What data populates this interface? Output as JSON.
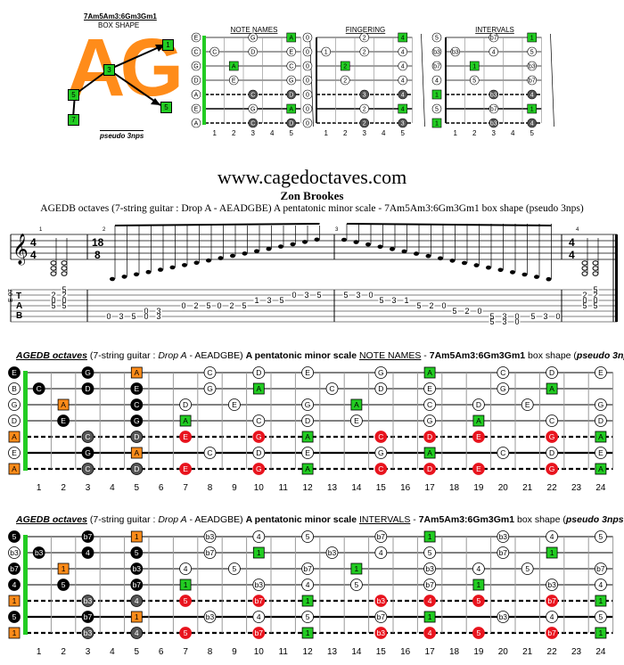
{
  "logo": {
    "shape_name": "7Am5Am3:6Gm3Gm1",
    "shape_label": "BOX SHAPE",
    "letters": "AG",
    "subtitle": "pseudo 3nps",
    "markers": [
      "1",
      "3",
      "5",
      "7",
      "5"
    ]
  },
  "mini_diagrams": [
    {
      "title": "NOTE NAMES"
    },
    {
      "title": "FINGERING"
    },
    {
      "title": "INTERVALS"
    }
  ],
  "mini_fret_numbers": [
    "1",
    "2",
    "3",
    "4",
    "5"
  ],
  "site": "www.cagedoctaves.com",
  "author": "Zon Brookes",
  "subtitle": "AGEDB octaves (7-string guitar : Drop A - AEADGBE) A pentatonic minor scale - 7Am5Am3:6Gm3Gm1 box shape (pseudo 3nps)",
  "notation": {
    "time_sig_a": [
      "4",
      "4"
    ],
    "time_sig_b": [
      "18",
      "8"
    ],
    "measure_numbers": [
      "1",
      "2",
      "3",
      "4"
    ],
    "clef_note": "E-07",
    "tab_label": [
      "T",
      "A",
      "B"
    ]
  },
  "fretboard_notes": {
    "caption_a": "AGEDB octaves",
    "caption_b": " (7-string guitar : ",
    "caption_c": "Drop A",
    "caption_d": " - AEADGBE) ",
    "caption_e": "A pentatonic minor scale ",
    "caption_f": "NOTE NAMES",
    "caption_g": " - ",
    "caption_h": "7Am5Am3:6Gm3Gm1",
    "caption_i": " box shape  (",
    "caption_j": "pseudo 3nps",
    "caption_k": ")",
    "open_strings": [
      "E",
      "B",
      "G",
      "D",
      "A",
      "E",
      "A"
    ]
  },
  "fretboard_intervals": {
    "caption_a": "AGEDB octaves",
    "caption_b": " (7-string guitar : ",
    "caption_c": "Drop A",
    "caption_d": " - AEADGBE) ",
    "caption_e": "A pentatonic minor scale ",
    "caption_f": "INTERVALS",
    "caption_g": " - ",
    "caption_h": "7Am5Am3:6Gm3Gm1",
    "caption_i": " box shape (",
    "caption_j": "pseudo 3nps",
    "caption_k": ")",
    "open_strings": [
      "5",
      "b3",
      "b7",
      "4",
      "1",
      "5",
      "1"
    ]
  },
  "fret_numbers": [
    "1",
    "2",
    "3",
    "4",
    "5",
    "6",
    "7",
    "8",
    "9",
    "10",
    "11",
    "12",
    "13",
    "14",
    "15",
    "16",
    "17",
    "18",
    "19",
    "20",
    "21",
    "22",
    "23",
    "24"
  ],
  "colors": {
    "green": "#22cc22",
    "orange": "#ff8c1a",
    "red": "#e8141e",
    "dark": "#555555",
    "black": "#000000",
    "white": "#ffffff"
  }
}
